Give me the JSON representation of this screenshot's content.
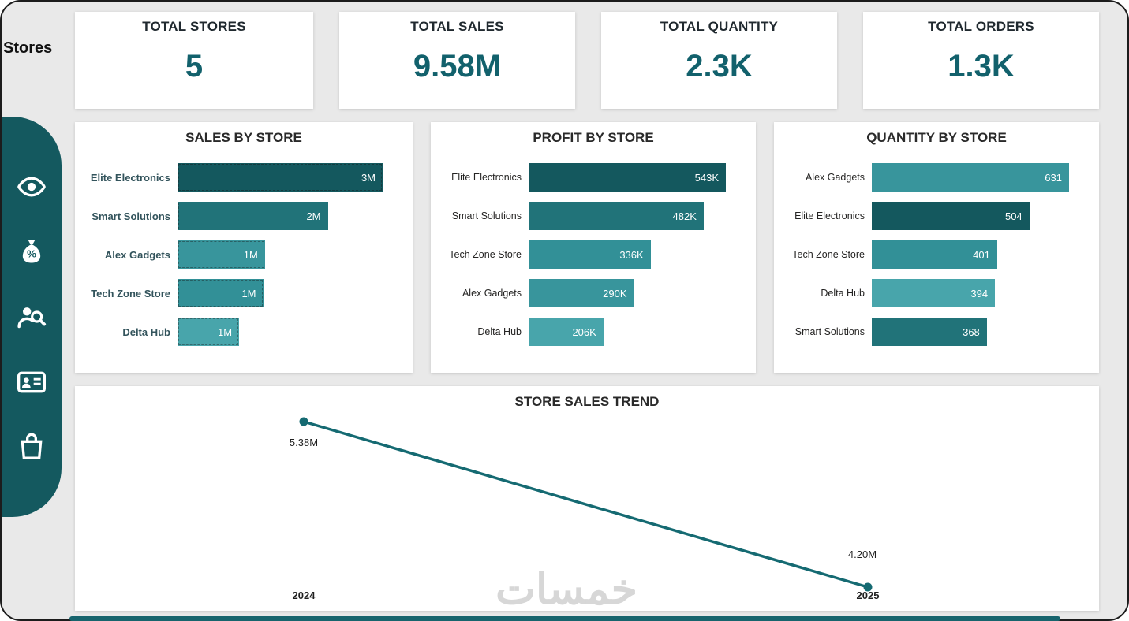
{
  "sidebar": {
    "title": "Stores",
    "icons": [
      "eye-icon",
      "discount-money-bag-icon",
      "customer-search-icon",
      "id-card-icon",
      "shopping-bag-icon"
    ]
  },
  "kpis": [
    {
      "label": "TOTAL STORES",
      "value": "5"
    },
    {
      "label": "TOTAL SALES",
      "value": "9.58M"
    },
    {
      "label": "TOTAL QUANTITY",
      "value": "2.3K"
    },
    {
      "label": "TOTAL ORDERS",
      "value": "1.3K"
    }
  ],
  "colors": {
    "accent": "#12616c",
    "sidebar": "#14595f",
    "page_background": "#e9e9e9",
    "card_background": "#ffffff",
    "watermark": "#d7d7d7"
  },
  "chart_data": [
    {
      "type": "bar",
      "orientation": "horizontal",
      "title": "SALES BY STORE",
      "categories": [
        "Elite Electronics",
        "Smart Solutions",
        "Alex Gadgets",
        "Tech Zone Store",
        "Delta Hub"
      ],
      "values": [
        3330000,
        2440000,
        1420000,
        1390000,
        1000000
      ],
      "value_labels": [
        "3M",
        "2M",
        "1M",
        "1M",
        "1M"
      ],
      "colors": [
        "#14585e",
        "#217379",
        "#38959c",
        "#329097",
        "#48a5ab"
      ],
      "legend": "none",
      "grid": false
    },
    {
      "type": "bar",
      "orientation": "horizontal",
      "title": "PROFIT BY STORE",
      "categories": [
        "Elite Electronics",
        "Smart Solutions",
        "Tech Zone Store",
        "Alex Gadgets",
        "Delta Hub"
      ],
      "values": [
        543000,
        482000,
        336000,
        290000,
        206000
      ],
      "value_labels": [
        "543K",
        "482K",
        "336K",
        "290K",
        "206K"
      ],
      "colors": [
        "#14585e",
        "#217379",
        "#329097",
        "#38959c",
        "#48a5ab"
      ],
      "legend": "none",
      "grid": false
    },
    {
      "type": "bar",
      "orientation": "horizontal",
      "title": "QUANTITY BY STORE",
      "categories": [
        "Alex Gadgets",
        "Elite Electronics",
        "Tech Zone Store",
        "Delta Hub",
        "Smart Solutions"
      ],
      "values": [
        631,
        504,
        401,
        394,
        368
      ],
      "value_labels": [
        "631",
        "504",
        "401",
        "394",
        "368"
      ],
      "colors": [
        "#38959c",
        "#14585e",
        "#329097",
        "#48a5ab",
        "#217379"
      ],
      "legend": "none",
      "grid": false
    },
    {
      "type": "line",
      "title": "STORE SALES TREND",
      "x": [
        "2024",
        "2025"
      ],
      "values": [
        5380000,
        4200000
      ],
      "point_labels": [
        "5.38M",
        "4.20M"
      ],
      "line_color": "#156a72",
      "legend": "none",
      "grid": false
    }
  ],
  "watermark": "خمسات"
}
